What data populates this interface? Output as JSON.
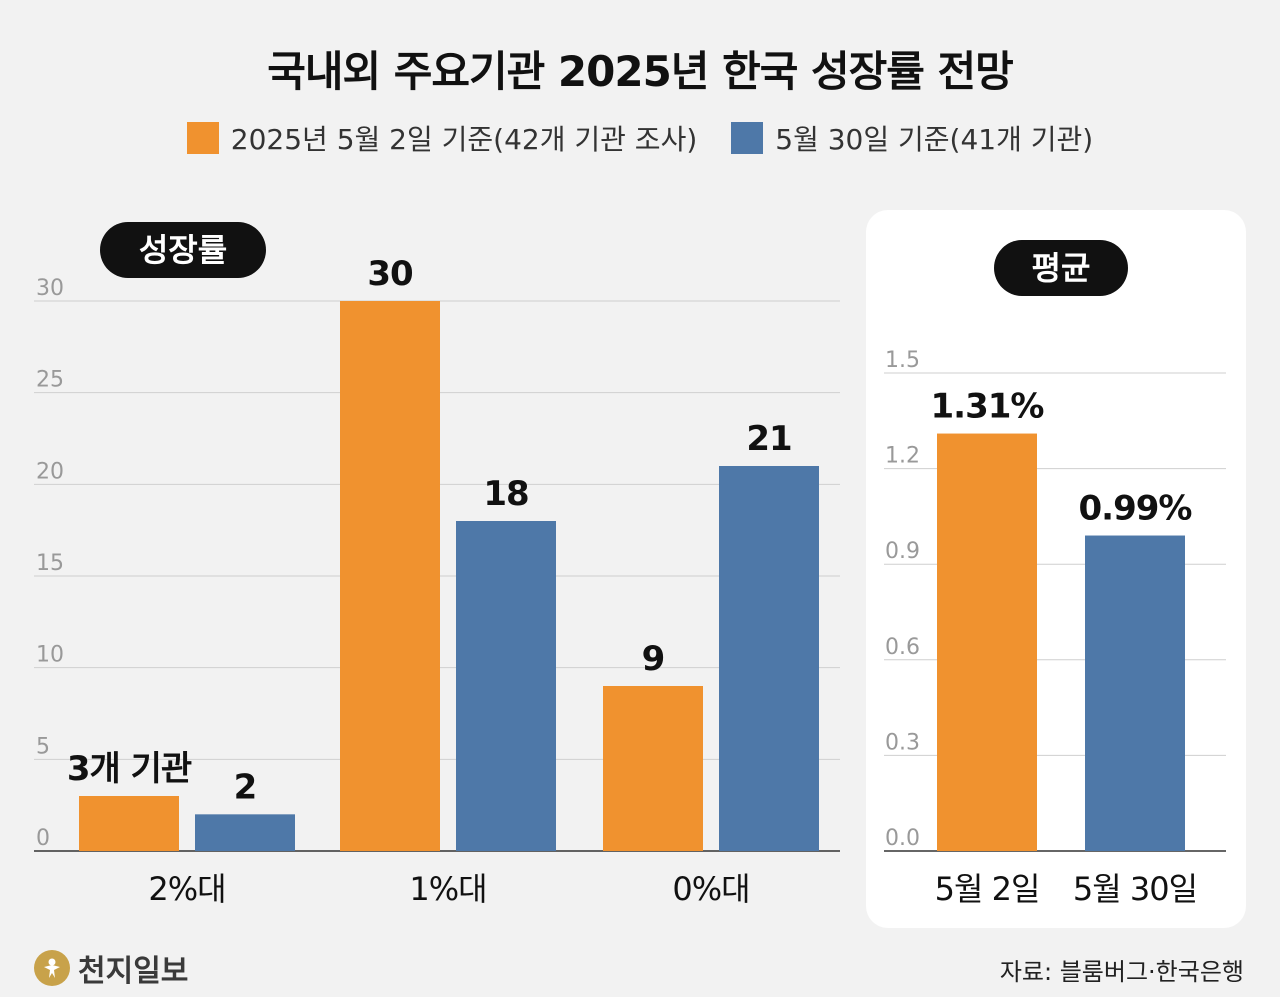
{
  "title": "국내외 주요기관 2025년 한국 성장률 전망",
  "legend": [
    {
      "label": "2025년 5월 2일 기준(42개 기관 조사)",
      "color": "#f0922f"
    },
    {
      "label": "5월 30일 기준(41개 기관)",
      "color": "#4e78a8"
    }
  ],
  "pills": {
    "growth": "성장률",
    "average": "평균"
  },
  "chart_data": [
    {
      "type": "bar",
      "title": "성장률",
      "categories": [
        "2%대",
        "1%대",
        "0%대"
      ],
      "series": [
        {
          "name": "2025년 5월 2일 기준(42개 기관 조사)",
          "values": [
            3,
            30,
            9
          ],
          "labels": [
            "3개 기관",
            "30",
            "9"
          ],
          "color": "#f0922f"
        },
        {
          "name": "5월 30일 기준(41개 기관)",
          "values": [
            2,
            18,
            21
          ],
          "labels": [
            "2",
            "18",
            "21"
          ],
          "color": "#4e78a8"
        }
      ],
      "yticks": [
        "0",
        "5",
        "10",
        "15",
        "20",
        "25",
        "30"
      ],
      "ylim": [
        0,
        30
      ],
      "grid": true
    },
    {
      "type": "bar",
      "title": "평균",
      "categories": [
        "5월 2일",
        "5월 30일"
      ],
      "values": [
        1.31,
        0.99
      ],
      "labels": [
        "1.31%",
        "0.99%"
      ],
      "colors": [
        "#f0922f",
        "#4e78a8"
      ],
      "yticks": [
        "0.0",
        "0.3",
        "0.6",
        "0.9",
        "1.2",
        "1.5"
      ],
      "ylim": [
        0,
        1.5
      ],
      "grid": true
    }
  ],
  "footer": {
    "logo": "천지일보",
    "source": "자료: 블룸버그·한국은행"
  }
}
